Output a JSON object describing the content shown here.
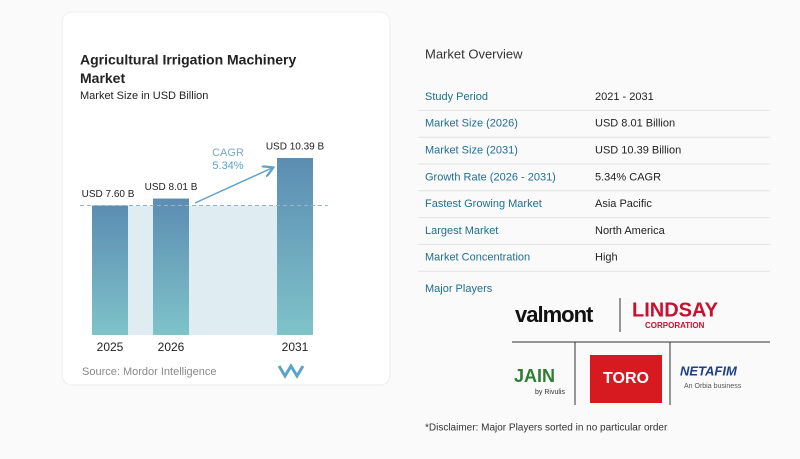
{
  "chart_data": {
    "type": "bar",
    "title": "Agricultural Irrigation Machinery Market",
    "subtitle": "Market Size in USD Billion",
    "categories": [
      "2025",
      "2026",
      "2031"
    ],
    "values": [
      7.6,
      8.01,
      10.39
    ],
    "value_labels": [
      "USD 7.60 B",
      "USD 8.01 B",
      "USD 10.39 B"
    ],
    "annotation": {
      "label": "CAGR",
      "value": "5.34%"
    },
    "source": "Source:  Mordor Intelligence"
  },
  "overview": {
    "title": "Market Overview",
    "rows": [
      [
        "Study Period",
        "2021 - 2031"
      ],
      [
        "Market Size (2026)",
        "USD 8.01 Billion"
      ],
      [
        "Market Size (2031)",
        "USD 10.39 Billion"
      ],
      [
        "Growth Rate (2026 - 2031)",
        "5.34% CAGR"
      ],
      [
        "Fastest Growing Market",
        "Asia Pacific"
      ],
      [
        "Largest Market",
        "North America"
      ],
      [
        "Market Concentration",
        "High"
      ]
    ],
    "players_title": "Major Players",
    "players": [
      "valmont",
      "LINDSAY",
      "CORPORATION",
      "JAIN",
      "by Rivulis",
      "TORO",
      "NETAFIM",
      "An Orbia business"
    ],
    "disclaimer": "*Disclaimer: Major Players sorted in no particular order"
  }
}
